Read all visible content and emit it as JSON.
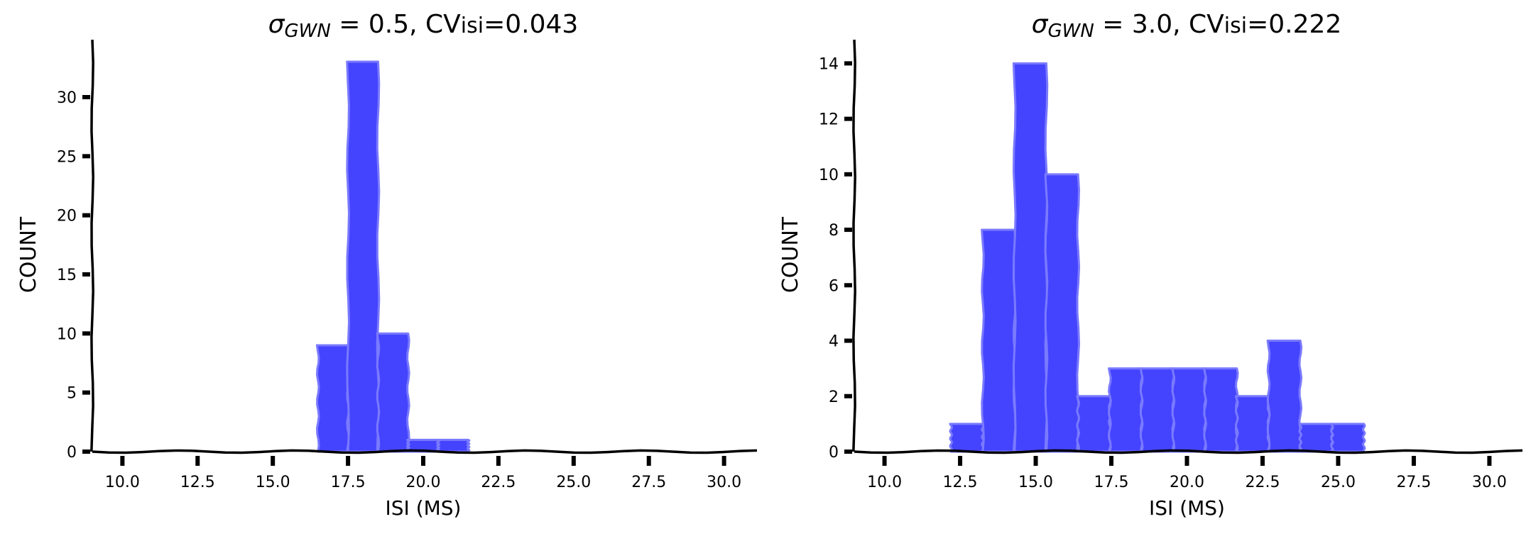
{
  "chart_data": [
    {
      "type": "bar",
      "title_prefix": "σ",
      "title_subscript": "GWN",
      "title_middle": " = 0.5,  CV",
      "title_subscript2": "isi",
      "title_suffix": "=0.043",
      "xlabel": "ISI (MS)",
      "ylabel": "COUNT",
      "xlim": [
        9.0,
        31.0
      ],
      "ylim": [
        0,
        34.5
      ],
      "xticks": [
        "10.0",
        "12.5",
        "15.0",
        "17.5",
        "20.0",
        "22.5",
        "25.0",
        "27.5",
        "30.0"
      ],
      "yticks": [
        "0",
        "5",
        "10",
        "15",
        "20",
        "25",
        "30"
      ],
      "bin_edges": [
        16.5,
        17.5,
        18.5,
        19.5,
        20.5,
        21.5
      ],
      "values": [
        9,
        33,
        10,
        1,
        1
      ],
      "bar_color": "#4444ff",
      "edge_color": "#7a7aff"
    },
    {
      "type": "bar",
      "title_prefix": "σ",
      "title_subscript": "GWN",
      "title_middle": " = 3.0,  CV",
      "title_subscript2": "isi",
      "title_suffix": "=0.222",
      "xlabel": "ISI (MS)",
      "ylabel": "COUNT",
      "xlim": [
        9.0,
        31.0
      ],
      "ylim": [
        0,
        14.7
      ],
      "xticks": [
        "10.0",
        "12.5",
        "15.0",
        "17.5",
        "20.0",
        "22.5",
        "25.0",
        "27.5",
        "30.0"
      ],
      "yticks": [
        "0",
        "2",
        "4",
        "6",
        "8",
        "10",
        "12",
        "14"
      ],
      "bin_edges": [
        12.2,
        13.25,
        14.3,
        15.35,
        16.4,
        17.45,
        18.5,
        19.55,
        20.6,
        21.65,
        22.7,
        23.75,
        24.8,
        25.85
      ],
      "values": [
        1,
        8,
        14,
        10,
        2,
        3,
        3,
        3,
        3,
        2,
        4,
        1,
        1
      ],
      "bar_color": "#4444ff",
      "edge_color": "#7a7aff"
    }
  ]
}
